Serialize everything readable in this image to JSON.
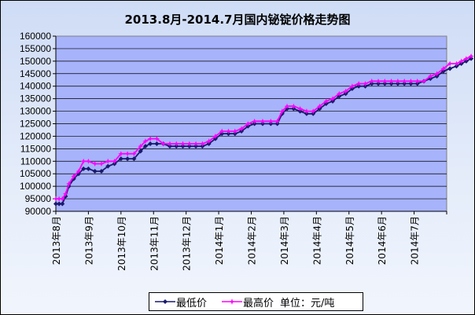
{
  "chart_data": {
    "type": "line",
    "title": "2013.8月-2014.7月国内铋锭价格走势图",
    "unit_label": "单位：元/吨",
    "xlabel": "",
    "ylabel": "",
    "ylim": [
      90000,
      160000
    ],
    "yticks": [
      90000,
      95000,
      100000,
      105000,
      110000,
      115000,
      120000,
      125000,
      130000,
      135000,
      140000,
      145000,
      150000,
      155000,
      160000
    ],
    "months": [
      "2013年8月",
      "2013年9月",
      "2013年10月",
      "2013年11月",
      "2013年12月",
      "2014年1月",
      "2014年2月",
      "2014年3月",
      "2014年4月",
      "2014年5月",
      "2014年6月",
      "2014年7月"
    ],
    "grid": true,
    "legend_position": "bottom",
    "series": [
      {
        "name": "最低价",
        "color": "#1a1a6e",
        "marker": "diamond",
        "points": [
          [
            0,
            93000
          ],
          [
            0.1,
            93000
          ],
          [
            0.2,
            93000
          ],
          [
            0.3,
            96000
          ],
          [
            0.4,
            100000
          ],
          [
            0.55,
            103000
          ],
          [
            0.7,
            105000
          ],
          [
            0.85,
            107000
          ],
          [
            1.0,
            107000
          ],
          [
            1.2,
            106000
          ],
          [
            1.4,
            106000
          ],
          [
            1.6,
            108000
          ],
          [
            1.8,
            109000
          ],
          [
            2.0,
            111000
          ],
          [
            2.2,
            111000
          ],
          [
            2.4,
            111000
          ],
          [
            2.6,
            114000
          ],
          [
            2.75,
            116000
          ],
          [
            2.9,
            117000
          ],
          [
            3.1,
            117000
          ],
          [
            3.3,
            117000
          ],
          [
            3.5,
            116000
          ],
          [
            3.7,
            116000
          ],
          [
            3.9,
            116000
          ],
          [
            4.1,
            116000
          ],
          [
            4.3,
            116000
          ],
          [
            4.5,
            116000
          ],
          [
            4.7,
            117000
          ],
          [
            4.9,
            119000
          ],
          [
            5.1,
            121000
          ],
          [
            5.3,
            121000
          ],
          [
            5.5,
            121000
          ],
          [
            5.7,
            122000
          ],
          [
            5.9,
            124000
          ],
          [
            6.1,
            125000
          ],
          [
            6.35,
            125000
          ],
          [
            6.6,
            125000
          ],
          [
            6.8,
            125000
          ],
          [
            6.95,
            129000
          ],
          [
            7.1,
            131000
          ],
          [
            7.3,
            131000
          ],
          [
            7.5,
            130000
          ],
          [
            7.7,
            129000
          ],
          [
            7.9,
            129000
          ],
          [
            8.1,
            131000
          ],
          [
            8.3,
            133000
          ],
          [
            8.5,
            134000
          ],
          [
            8.7,
            136000
          ],
          [
            8.9,
            137000
          ],
          [
            9.1,
            139000
          ],
          [
            9.3,
            140000
          ],
          [
            9.5,
            140000
          ],
          [
            9.7,
            141000
          ],
          [
            9.9,
            141000
          ],
          [
            10.1,
            141000
          ],
          [
            10.3,
            141000
          ],
          [
            10.5,
            141000
          ],
          [
            10.7,
            141000
          ],
          [
            10.9,
            141000
          ],
          [
            11.1,
            141000
          ],
          [
            11.3,
            142000
          ],
          [
            11.5,
            143000
          ],
          [
            11.7,
            144000
          ],
          [
            11.9,
            146000
          ],
          [
            12.1,
            147000
          ],
          [
            12.3,
            148000
          ],
          [
            12.45,
            149000
          ],
          [
            12.6,
            150000
          ],
          [
            12.75,
            151000
          ]
        ]
      },
      {
        "name": "最高价",
        "color": "#ff00ff",
        "marker": "star",
        "points": [
          [
            0,
            95000
          ],
          [
            0.1,
            95000
          ],
          [
            0.2,
            95000
          ],
          [
            0.3,
            97000
          ],
          [
            0.4,
            101000
          ],
          [
            0.55,
            104000
          ],
          [
            0.7,
            106000
          ],
          [
            0.85,
            110000
          ],
          [
            1.0,
            110000
          ],
          [
            1.2,
            109000
          ],
          [
            1.4,
            109000
          ],
          [
            1.6,
            110000
          ],
          [
            1.8,
            110000
          ],
          [
            2.0,
            113000
          ],
          [
            2.2,
            113000
          ],
          [
            2.4,
            113000
          ],
          [
            2.6,
            116000
          ],
          [
            2.75,
            118000
          ],
          [
            2.9,
            119000
          ],
          [
            3.1,
            119000
          ],
          [
            3.3,
            117000
          ],
          [
            3.5,
            117000
          ],
          [
            3.7,
            117000
          ],
          [
            3.9,
            117000
          ],
          [
            4.1,
            117000
          ],
          [
            4.3,
            117000
          ],
          [
            4.5,
            117000
          ],
          [
            4.7,
            118000
          ],
          [
            4.9,
            120000
          ],
          [
            5.1,
            122000
          ],
          [
            5.3,
            122000
          ],
          [
            5.5,
            122000
          ],
          [
            5.7,
            123000
          ],
          [
            5.9,
            125000
          ],
          [
            6.1,
            126000
          ],
          [
            6.35,
            126000
          ],
          [
            6.6,
            126000
          ],
          [
            6.8,
            126000
          ],
          [
            6.95,
            130000
          ],
          [
            7.1,
            132000
          ],
          [
            7.3,
            132000
          ],
          [
            7.5,
            131000
          ],
          [
            7.7,
            130000
          ],
          [
            7.9,
            130000
          ],
          [
            8.1,
            132000
          ],
          [
            8.3,
            134000
          ],
          [
            8.5,
            135000
          ],
          [
            8.7,
            137000
          ],
          [
            8.9,
            138000
          ],
          [
            9.1,
            140000
          ],
          [
            9.3,
            141000
          ],
          [
            9.5,
            141000
          ],
          [
            9.7,
            142000
          ],
          [
            9.9,
            142000
          ],
          [
            10.1,
            142000
          ],
          [
            10.3,
            142000
          ],
          [
            10.5,
            142000
          ],
          [
            10.7,
            142000
          ],
          [
            10.9,
            142000
          ],
          [
            11.1,
            142000
          ],
          [
            11.3,
            142000
          ],
          [
            11.5,
            144000
          ],
          [
            11.7,
            145000
          ],
          [
            11.9,
            147000
          ],
          [
            12.1,
            149000
          ],
          [
            12.3,
            149000
          ],
          [
            12.45,
            150000
          ],
          [
            12.6,
            151000
          ],
          [
            12.75,
            152000
          ]
        ]
      }
    ]
  }
}
